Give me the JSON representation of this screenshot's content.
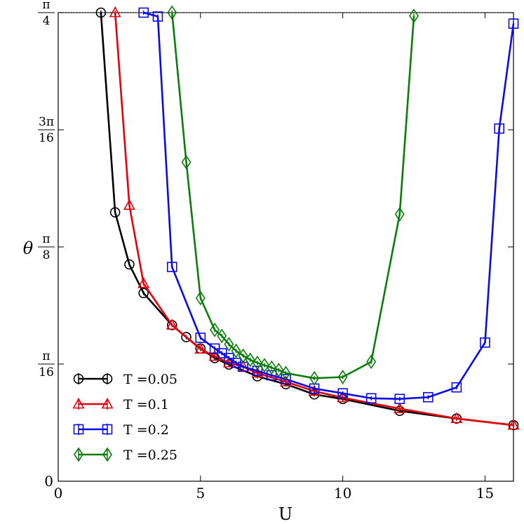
{
  "chart_data": {
    "type": "line",
    "title": "",
    "xlabel": "U",
    "ylabel": "θ",
    "xlim": [
      0,
      16
    ],
    "ylim": [
      0,
      0.7854
    ],
    "x_ticks": [
      {
        "value": 0,
        "label": "0"
      },
      {
        "value": 5,
        "label": "5"
      },
      {
        "value": 10,
        "label": "10"
      },
      {
        "value": 15,
        "label": "15"
      }
    ],
    "y_ticks": [
      {
        "value": 0,
        "num": "0",
        "den": ""
      },
      {
        "value": 0.19635,
        "num": "π",
        "den": "16"
      },
      {
        "value": 0.3927,
        "num": "π",
        "den": "8"
      },
      {
        "value": 0.58905,
        "num": "3π",
        "den": "16"
      },
      {
        "value": 0.7854,
        "num": "π",
        "den": "4"
      }
    ],
    "reference_line": {
      "value": 0.7854,
      "style": "dotted"
    },
    "legend_position": "lower-left",
    "series": [
      {
        "name": "T =0.05",
        "color": "#000000",
        "marker": "circle",
        "x": [
          1.5,
          2.0,
          2.5,
          3.0,
          4.0,
          4.5,
          5.0,
          5.5,
          6.0,
          7.0,
          8.0,
          9.0,
          10.0,
          12.0,
          14.0,
          16.0
        ],
        "y": [
          0.7854,
          0.4507,
          0.3633,
          0.3153,
          0.2616,
          0.2415,
          0.2224,
          0.2064,
          0.1955,
          0.1758,
          0.1626,
          0.1455,
          0.1378,
          0.1179,
          0.105,
          0.094
        ]
      },
      {
        "name": "T =0.1",
        "color": "#e8000b",
        "marker": "triangle",
        "x": [
          2.0,
          2.5,
          3.0,
          4.0,
          5.0,
          5.5,
          6.0,
          6.5,
          7.0,
          8.0,
          9.0,
          10.0,
          12.0,
          14.0,
          16.0
        ],
        "y": [
          0.7854,
          0.4624,
          0.3313,
          0.2616,
          0.2214,
          0.2094,
          0.1984,
          0.1918,
          0.1812,
          0.1666,
          0.1509,
          0.14,
          0.1216,
          0.105,
          0.094
        ]
      },
      {
        "name": "T =0.2",
        "color": "#0a0aeb",
        "marker": "square",
        "x": [
          3.0,
          3.5,
          4.0,
          5.0,
          5.5,
          5.75,
          6.0,
          6.25,
          6.5,
          7.0,
          7.5,
          8.0,
          9.0,
          10.0,
          11.0,
          12.0,
          13.0,
          14.0,
          15.0,
          15.5,
          16.0
        ],
        "y": [
          0.7854,
          0.7789,
          0.3591,
          0.2404,
          0.2224,
          0.2145,
          0.2064,
          0.1984,
          0.1918,
          0.185,
          0.1775,
          0.171,
          0.1553,
          0.1473,
          0.139,
          0.1379,
          0.1408,
          0.1573,
          0.2324,
          0.5911,
          0.767
        ]
      },
      {
        "name": "T =0.25",
        "color": "#0b7d0b",
        "marker": "diamond",
        "x": [
          4.0,
          4.5,
          5.0,
          5.5,
          5.75,
          6.0,
          6.25,
          6.5,
          6.75,
          7.0,
          7.25,
          7.5,
          7.75,
          8.0,
          9.0,
          10.0,
          11.0,
          12.0,
          12.5
        ],
        "y": [
          0.7854,
          0.5347,
          0.307,
          0.2536,
          0.2435,
          0.2295,
          0.2185,
          0.2104,
          0.2034,
          0.1984,
          0.1944,
          0.1904,
          0.1864,
          0.1812,
          0.1726,
          0.1746,
          0.2002,
          0.4475,
          0.7799
        ]
      }
    ]
  }
}
